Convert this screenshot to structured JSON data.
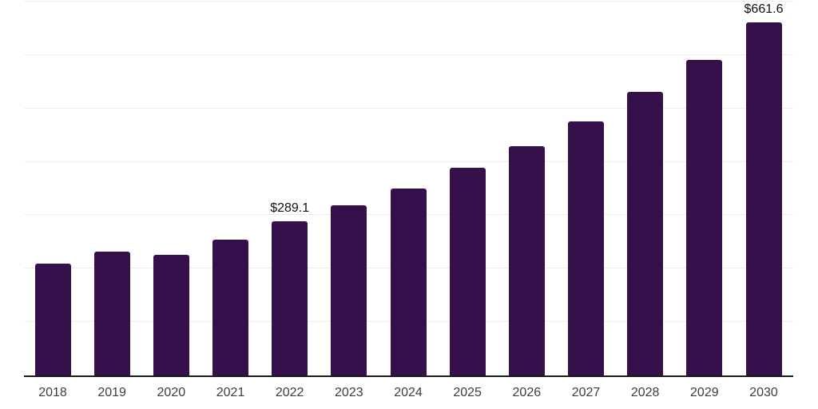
{
  "chart": {
    "background": "#ffffff",
    "bar_color": "#36104a",
    "axis_line_color": "#1a1a1a",
    "gridline_color": "#ededed",
    "tick_label_color": "#3d3d3d",
    "value_label_color": "#111111"
  },
  "chart_data": {
    "type": "bar",
    "title": "",
    "xlabel": "",
    "ylabel": "",
    "categories": [
      "2018",
      "2019",
      "2020",
      "2021",
      "2022",
      "2023",
      "2024",
      "2025",
      "2026",
      "2027",
      "2028",
      "2029",
      "2030"
    ],
    "values": [
      209,
      232,
      226,
      254,
      289.1,
      319,
      350,
      389,
      429,
      476,
      531,
      591,
      661.6
    ],
    "data_labels": [
      {
        "category": "2022",
        "text": "$289.1"
      },
      {
        "category": "2030",
        "text": "$661.6"
      }
    ],
    "ylim": [
      0,
      700
    ],
    "gridline_interval": 100,
    "grid": "horizontal",
    "legend": "none"
  }
}
